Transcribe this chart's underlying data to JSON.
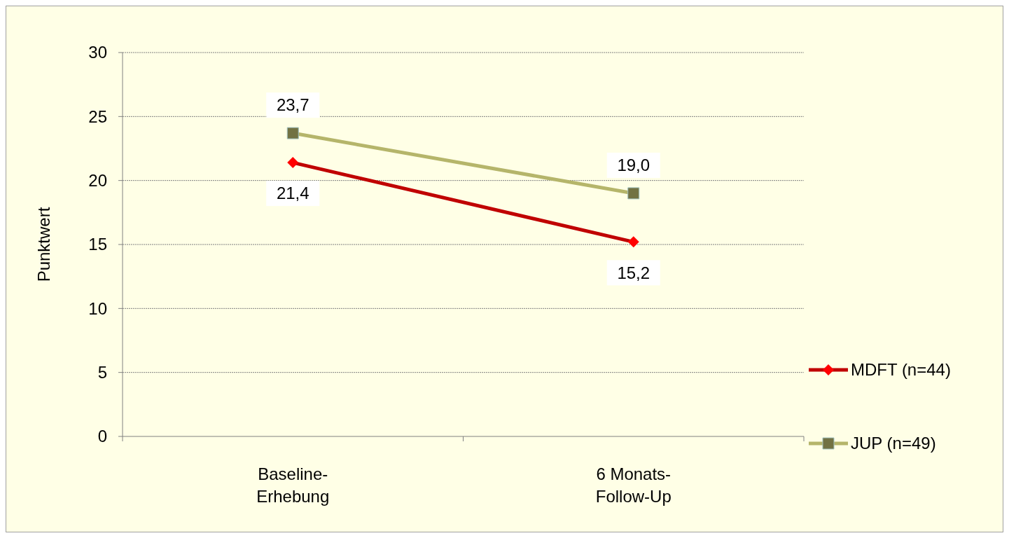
{
  "chart_data": {
    "type": "line",
    "ylabel": "Punktwert",
    "categories": [
      "Baseline-\nErhebung",
      "6 Monats-\nFollow-Up"
    ],
    "series": [
      {
        "name": "MDFT (n=44)",
        "color": "#c00000",
        "values": [
          21.4,
          15.2
        ],
        "value_labels": [
          "21,4",
          "15,2"
        ],
        "marker": "diamond"
      },
      {
        "name": "JUP (n=49)",
        "color": "#b5b56a",
        "values": [
          23.7,
          19.0
        ],
        "value_labels": [
          "23,7",
          "19,0"
        ],
        "marker": "square"
      }
    ],
    "ylim": [
      0,
      30
    ],
    "yticks": [
      0,
      5,
      10,
      15,
      20,
      25,
      30
    ],
    "grid": "y",
    "legend": "right",
    "line_style": "solid"
  }
}
